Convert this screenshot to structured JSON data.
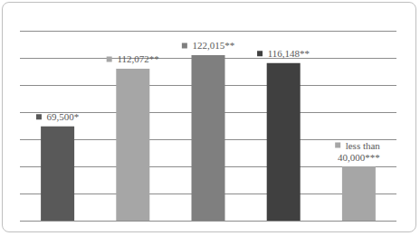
{
  "chart_data": {
    "type": "bar",
    "categories": [
      null,
      null,
      null,
      null,
      null
    ],
    "values": [
      69500,
      112072,
      122015,
      116148,
      40000
    ],
    "value_labels": [
      "69,500*",
      "112,072**",
      "122,015**",
      "116,148**",
      "less than 40,000***"
    ],
    "colors": [
      "#595959",
      "#a6a6a6",
      "#7f7f7f",
      "#404040",
      "#a6a6a6"
    ],
    "ylim": [
      0,
      140000
    ],
    "yticks": [
      0,
      20000,
      40000,
      60000,
      80000,
      100000,
      120000,
      140000
    ],
    "grid": true,
    "data_labels": true,
    "tick_labels": false
  }
}
